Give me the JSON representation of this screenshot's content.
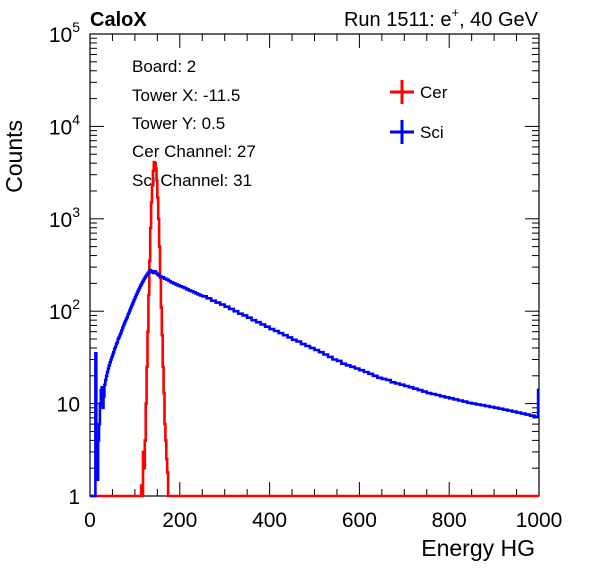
{
  "header": {
    "experiment": "CaloX",
    "run_label": "Run 1511: e",
    "run_sup": "+",
    "run_energy": ", 40 GeV"
  },
  "info": {
    "board": "Board: 2",
    "tower_x": "Tower X: -11.5",
    "tower_y": "Tower Y: 0.5",
    "cer_channel": "Cer Channel: 27",
    "sci_channel": "Sci Channel: 31"
  },
  "chart_data": {
    "type": "line",
    "title": "",
    "xlabel": "Energy HG",
    "ylabel": "Counts",
    "xlim": [
      0,
      1000
    ],
    "ylim": [
      1,
      100000
    ],
    "yscale": "log",
    "x_ticks": [
      0,
      200,
      400,
      600,
      800,
      1000
    ],
    "x_tick_labels": [
      "0",
      "200",
      "400",
      "600",
      "800",
      "1000"
    ],
    "y_tick_labels": [
      {
        "value": 1,
        "base": "1",
        "exp": ""
      },
      {
        "value": 10,
        "base": "10",
        "exp": ""
      },
      {
        "value": 100,
        "base": "10",
        "exp": "2"
      },
      {
        "value": 1000,
        "base": "10",
        "exp": "3"
      },
      {
        "value": 10000,
        "base": "10",
        "exp": "4"
      },
      {
        "value": 100000,
        "base": "10",
        "exp": "5"
      }
    ],
    "legend_position": "top-right",
    "series": [
      {
        "name": "Cer",
        "color": "#ff0000",
        "points": [
          [
            0,
            1
          ],
          [
            20,
            1
          ],
          [
            22,
            1
          ],
          [
            24,
            1
          ],
          [
            26,
            1
          ],
          [
            28,
            1
          ],
          [
            30,
            1
          ],
          [
            32,
            1
          ],
          [
            34,
            1
          ],
          [
            36,
            1
          ],
          [
            38,
            1
          ],
          [
            40,
            1
          ],
          [
            42,
            1
          ],
          [
            44,
            1
          ],
          [
            46,
            1
          ],
          [
            48,
            1
          ],
          [
            50,
            1
          ],
          [
            52,
            1
          ],
          [
            54,
            1
          ],
          [
            56,
            1
          ],
          [
            58,
            1
          ],
          [
            60,
            1
          ],
          [
            62,
            1
          ],
          [
            64,
            1
          ],
          [
            66,
            1
          ],
          [
            68,
            1
          ],
          [
            70,
            1
          ],
          [
            72,
            1
          ],
          [
            74,
            1
          ],
          [
            76,
            1
          ],
          [
            78,
            1
          ],
          [
            80,
            1
          ],
          [
            82,
            1
          ],
          [
            84,
            1
          ],
          [
            86,
            1
          ],
          [
            88,
            1
          ],
          [
            90,
            1
          ],
          [
            92,
            1
          ],
          [
            94,
            1
          ],
          [
            96,
            1
          ],
          [
            98,
            1
          ],
          [
            100,
            1
          ],
          [
            102,
            1
          ],
          [
            104,
            1
          ],
          [
            106,
            1
          ],
          [
            108,
            1
          ],
          [
            110,
            1
          ],
          [
            112,
            1
          ],
          [
            114,
            1.3
          ],
          [
            116,
            1
          ],
          [
            118,
            3
          ],
          [
            120,
            2
          ],
          [
            122,
            4
          ],
          [
            124,
            10
          ],
          [
            126,
            25
          ],
          [
            128,
            60
          ],
          [
            130,
            150
          ],
          [
            132,
            350
          ],
          [
            134,
            800
          ],
          [
            136,
            1500
          ],
          [
            138,
            2300
          ],
          [
            140,
            3300
          ],
          [
            142,
            4100
          ],
          [
            144,
            4000
          ],
          [
            146,
            3500
          ],
          [
            148,
            2600
          ],
          [
            150,
            1700
          ],
          [
            152,
            1000
          ],
          [
            154,
            500
          ],
          [
            156,
            230
          ],
          [
            158,
            110
          ],
          [
            160,
            55
          ],
          [
            162,
            25
          ],
          [
            164,
            13
          ],
          [
            166,
            6
          ],
          [
            168,
            4
          ],
          [
            170,
            2.5
          ],
          [
            172,
            1.8
          ],
          [
            174,
            1
          ],
          [
            176,
            1
          ],
          [
            180,
            1
          ],
          [
            200,
            1
          ],
          [
            300,
            1
          ],
          [
            400,
            1
          ],
          [
            500,
            1
          ],
          [
            600,
            1
          ],
          [
            700,
            1
          ],
          [
            800,
            1
          ],
          [
            900,
            1
          ],
          [
            1000,
            1
          ]
        ]
      },
      {
        "name": "Sci",
        "color": "#0000ff",
        "points": [
          [
            0,
            1
          ],
          [
            10,
            1
          ],
          [
            12,
            35
          ],
          [
            14,
            3
          ],
          [
            16,
            1.5
          ],
          [
            18,
            4
          ],
          [
            20,
            6
          ],
          [
            22,
            10
          ],
          [
            24,
            14
          ],
          [
            26,
            15
          ],
          [
            28,
            9
          ],
          [
            30,
            12
          ],
          [
            32,
            16
          ],
          [
            34,
            18
          ],
          [
            36,
            20
          ],
          [
            38,
            22
          ],
          [
            40,
            24
          ],
          [
            42,
            26
          ],
          [
            44,
            28
          ],
          [
            46,
            30
          ],
          [
            48,
            32
          ],
          [
            50,
            34
          ],
          [
            52,
            36
          ],
          [
            54,
            39
          ],
          [
            56,
            41
          ],
          [
            58,
            44
          ],
          [
            60,
            46
          ],
          [
            62,
            50
          ],
          [
            64,
            52
          ],
          [
            66,
            55
          ],
          [
            68,
            58
          ],
          [
            70,
            62
          ],
          [
            72,
            66
          ],
          [
            74,
            70
          ],
          [
            76,
            74
          ],
          [
            78,
            78
          ],
          [
            80,
            82
          ],
          [
            82,
            86
          ],
          [
            84,
            92
          ],
          [
            86,
            96
          ],
          [
            88,
            102
          ],
          [
            90,
            108
          ],
          [
            92,
            114
          ],
          [
            94,
            120
          ],
          [
            96,
            127
          ],
          [
            98,
            134
          ],
          [
            100,
            141
          ],
          [
            102,
            149
          ],
          [
            104,
            156
          ],
          [
            106,
            164
          ],
          [
            108,
            172
          ],
          [
            110,
            180
          ],
          [
            112,
            189
          ],
          [
            114,
            197
          ],
          [
            116,
            206
          ],
          [
            118,
            214
          ],
          [
            120,
            223
          ],
          [
            122,
            232
          ],
          [
            124,
            240
          ],
          [
            126,
            248
          ],
          [
            128,
            256
          ],
          [
            130,
            264
          ],
          [
            132,
            271
          ],
          [
            134,
            278
          ],
          [
            136,
            272
          ],
          [
            138,
            266
          ],
          [
            140,
            260
          ],
          [
            142,
            265
          ],
          [
            144,
            270
          ],
          [
            146,
            262
          ],
          [
            148,
            255
          ],
          [
            150,
            250
          ],
          [
            152,
            246
          ],
          [
            154,
            242
          ],
          [
            156,
            238
          ],
          [
            158,
            236
          ],
          [
            160,
            233
          ],
          [
            165,
            225
          ],
          [
            170,
            220
          ],
          [
            175,
            212
          ],
          [
            180,
            205
          ],
          [
            185,
            200
          ],
          [
            190,
            195
          ],
          [
            195,
            190
          ],
          [
            200,
            186
          ],
          [
            205,
            182
          ],
          [
            210,
            178
          ],
          [
            215,
            172
          ],
          [
            220,
            168
          ],
          [
            225,
            164
          ],
          [
            230,
            160
          ],
          [
            235,
            156
          ],
          [
            240,
            152
          ],
          [
            245,
            148
          ],
          [
            250,
            145
          ],
          [
            260,
            138
          ],
          [
            270,
            130
          ],
          [
            280,
            124
          ],
          [
            290,
            118
          ],
          [
            300,
            112
          ],
          [
            310,
            106
          ],
          [
            320,
            100
          ],
          [
            330,
            94
          ],
          [
            340,
            90
          ],
          [
            350,
            85
          ],
          [
            360,
            80
          ],
          [
            370,
            76
          ],
          [
            380,
            72
          ],
          [
            390,
            68
          ],
          [
            400,
            64
          ],
          [
            410,
            61
          ],
          [
            420,
            58
          ],
          [
            430,
            55
          ],
          [
            440,
            52
          ],
          [
            450,
            49
          ],
          [
            460,
            47
          ],
          [
            470,
            44
          ],
          [
            480,
            42
          ],
          [
            490,
            40
          ],
          [
            500,
            38
          ],
          [
            510,
            36
          ],
          [
            520,
            34
          ],
          [
            530,
            32
          ],
          [
            540,
            30
          ],
          [
            550,
            29
          ],
          [
            560,
            27
          ],
          [
            570,
            26
          ],
          [
            580,
            25
          ],
          [
            590,
            24
          ],
          [
            600,
            23
          ],
          [
            610,
            22
          ],
          [
            620,
            21
          ],
          [
            630,
            20
          ],
          [
            640,
            19
          ],
          [
            650,
            18.5
          ],
          [
            660,
            18
          ],
          [
            670,
            17
          ],
          [
            680,
            16.5
          ],
          [
            690,
            16
          ],
          [
            700,
            15.5
          ],
          [
            710,
            15
          ],
          [
            720,
            14.5
          ],
          [
            730,
            14
          ],
          [
            740,
            13.5
          ],
          [
            750,
            13
          ],
          [
            760,
            12.7
          ],
          [
            770,
            12.4
          ],
          [
            780,
            12
          ],
          [
            790,
            11.7
          ],
          [
            800,
            11.4
          ],
          [
            810,
            11.1
          ],
          [
            820,
            10.8
          ],
          [
            830,
            10.5
          ],
          [
            840,
            10.2
          ],
          [
            850,
            10
          ],
          [
            860,
            9.8
          ],
          [
            870,
            9.6
          ],
          [
            880,
            9.4
          ],
          [
            890,
            9.2
          ],
          [
            900,
            9
          ],
          [
            910,
            8.8
          ],
          [
            920,
            8.6
          ],
          [
            930,
            8.4
          ],
          [
            940,
            8.2
          ],
          [
            950,
            8
          ],
          [
            960,
            7.8
          ],
          [
            970,
            7.6
          ],
          [
            980,
            7.4
          ],
          [
            990,
            7.2
          ],
          [
            998,
            14
          ],
          [
            1000,
            14
          ]
        ]
      }
    ]
  }
}
